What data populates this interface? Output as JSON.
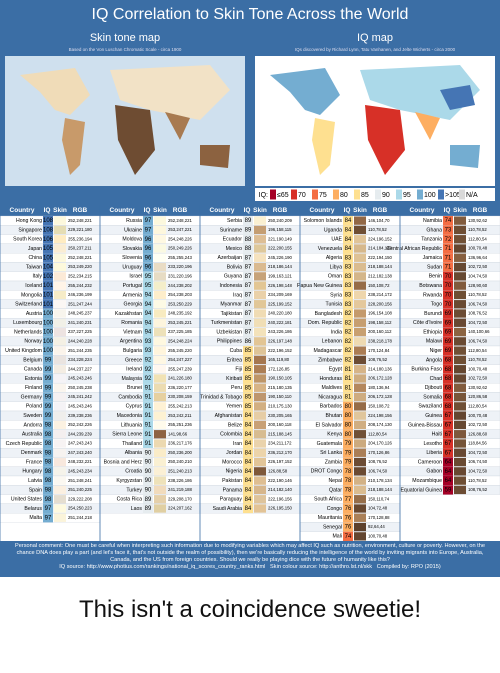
{
  "header": {
    "title": "IQ Correlation to Skin Tone Across the World",
    "left_title": "Skin tone map",
    "left_subtitle": "Based on the Von Luschan Chromatic Scale - circa 1900",
    "right_title": "IQ map",
    "right_subtitle": "IQs discovered by Richard Lynn, Tatu Vanhanen, and Jelte Wicherts - circa 2000"
  },
  "legend": {
    "label": "IQ:",
    "items": [
      {
        "value": 65,
        "label": "≤65",
        "color": "#a50026"
      },
      {
        "value": 70,
        "label": "70",
        "color": "#d73027"
      },
      {
        "value": 75,
        "label": "75",
        "color": "#f46d43"
      },
      {
        "value": 80,
        "label": "80",
        "color": "#fdae61"
      },
      {
        "value": 85,
        "label": "85",
        "color": "#fee090"
      },
      {
        "value": 90,
        "label": "90",
        "color": "#e6ecef"
      },
      {
        "value": 95,
        "label": "95",
        "color": "#abd9e9"
      },
      {
        "value": 100,
        "label": "100",
        "color": "#74add1"
      },
      {
        "value": 105,
        "label": ">105",
        "color": "#4575b4"
      }
    ],
    "na": {
      "label": "N/A",
      "color": "#d9d9d9"
    }
  },
  "table": {
    "headers": [
      "Country",
      "IQ",
      "Skin",
      "RGB"
    ],
    "columns": [
      {
        "rows": [
          [
            "Hong Kong",
            108,
            "252,248,221"
          ],
          [
            "Singapore",
            108,
            "229,221,180"
          ],
          [
            "South Korea",
            106,
            "255,236,194"
          ],
          [
            "Japan",
            105,
            "250,237,211"
          ],
          [
            "China",
            105,
            "252,248,221"
          ],
          [
            "Taiwan",
            104,
            "253,249,220"
          ],
          [
            "Italy",
            102,
            "252,234,215"
          ],
          [
            "Iceland",
            101,
            "255,244,232"
          ],
          [
            "Mongolia",
            101,
            "246,236,199"
          ],
          [
            "Switzerland",
            101,
            "251,247,244"
          ],
          [
            "Austria",
            100,
            "248,245,237"
          ],
          [
            "Luxembourg",
            100,
            "241,240,231"
          ],
          [
            "Netherlands",
            100,
            "237,227,225"
          ],
          [
            "Norway",
            100,
            "244,240,228"
          ],
          [
            "United Kingdom",
            100,
            "251,244,235"
          ],
          [
            "Belgium",
            99,
            "234,228,224"
          ],
          [
            "Canada",
            99,
            "244,237,227"
          ],
          [
            "Estonia",
            99,
            "245,243,246"
          ],
          [
            "Finland",
            99,
            "250,245,238"
          ],
          [
            "Germany",
            99,
            "245,241,242"
          ],
          [
            "Poland",
            99,
            "245,243,246"
          ],
          [
            "Sweden",
            99,
            "239,238,236"
          ],
          [
            "Andorra",
            98,
            "252,242,226"
          ],
          [
            "Australia",
            98,
            "244,239,239"
          ],
          [
            "Czech Republic",
            98,
            "247,243,243"
          ],
          [
            "Denmark",
            98,
            "247,243,240"
          ],
          [
            "France",
            98,
            "248,232,221"
          ],
          [
            "Hungary",
            98,
            "245,243,234"
          ],
          [
            "Latvia",
            98,
            "251,248,241"
          ],
          [
            "Spain",
            98,
            "251,240,225"
          ],
          [
            "United States",
            98,
            "229,222,208"
          ],
          [
            "Belarus",
            97,
            "254,250,223"
          ],
          [
            "Malta",
            97,
            "251,244,218"
          ]
        ]
      },
      {
        "rows": [
          [
            "Russia",
            97,
            "252,248,221"
          ],
          [
            "Ukraine",
            97,
            "253,247,221"
          ],
          [
            "Moldova",
            96,
            "254,248,226"
          ],
          [
            "Slovakia",
            96,
            "250,249,226"
          ],
          [
            "Slovenia",
            96,
            "255,255,243"
          ],
          [
            "Uruguay",
            96,
            "233,220,196"
          ],
          [
            "Israel",
            95,
            "231,220,196"
          ],
          [
            "Portugal",
            95,
            "244,238,202"
          ],
          [
            "Armenia",
            94,
            "254,238,203"
          ],
          [
            "Georgia",
            94,
            "253,250,229"
          ],
          [
            "Kazakhstan",
            94,
            "248,235,192"
          ],
          [
            "Romania",
            94,
            "253,245,221"
          ],
          [
            "Vietnam",
            94,
            "237,225,185"
          ],
          [
            "Argentina",
            93,
            "254,248,224"
          ],
          [
            "Bulgaria",
            93,
            "255,245,220"
          ],
          [
            "Greece",
            92,
            "254,247,227"
          ],
          [
            "Ireland",
            92,
            "255,247,239"
          ],
          [
            "Malaysia",
            92,
            "241,226,180"
          ],
          [
            "Brunei",
            91,
            "236,220,177"
          ],
          [
            "Cambodia",
            91,
            "230,208,159"
          ],
          [
            "Cyprus",
            91,
            "255,242,213"
          ],
          [
            "Macedonia",
            91,
            "253,242,211"
          ],
          [
            "Lithuania",
            91,
            "255,251,236"
          ],
          [
            "Sierra Leone",
            91,
            "141,98,66"
          ],
          [
            "Thailand",
            91,
            "236,217,176"
          ],
          [
            "Albania",
            90,
            "250,236,200"
          ],
          [
            "Bosnia and Herz",
            90,
            "250,240,210"
          ],
          [
            "Croatia",
            90,
            "251,240,213"
          ],
          [
            "Kyrgyzstan",
            90,
            "238,226,186"
          ],
          [
            "Turkey",
            90,
            "241,219,188"
          ],
          [
            "Costa Rica",
            89,
            "229,208,170"
          ],
          [
            "Laos",
            89,
            "224,207,162"
          ]
        ]
      },
      {
        "rows": [
          [
            "Serbia",
            89,
            "250,240,209"
          ],
          [
            "Suriname",
            89,
            "196,158,115"
          ],
          [
            "Ecuador",
            88,
            "221,190,149"
          ],
          [
            "Mexico",
            88,
            "222,200,155"
          ],
          [
            "Azerbaijan",
            87,
            "245,226,190"
          ],
          [
            "Bolivia",
            87,
            "218,186,144"
          ],
          [
            "Guyana",
            87,
            "199,163,121"
          ],
          [
            "Indonesia",
            87,
            "226,198,148"
          ],
          [
            "Iraq",
            87,
            "234,209,169"
          ],
          [
            "Myanmar",
            87,
            "225,199,152"
          ],
          [
            "Tajikistan",
            87,
            "240,220,180"
          ],
          [
            "Turkmenistan",
            87,
            "240,222,181"
          ],
          [
            "Uzbekistan",
            87,
            "243,226,186"
          ],
          [
            "Philippines",
            86,
            "226,197,148"
          ],
          [
            "Cuba",
            85,
            "222,196,152"
          ],
          [
            "Eritrea",
            85,
            "165,119,80"
          ],
          [
            "Fiji",
            85,
            "172,126,85"
          ],
          [
            "Kiribati",
            85,
            "190,150,105"
          ],
          [
            "Peru",
            85,
            "215,180,135"
          ],
          [
            "Trinidad & Tobago",
            85,
            "190,150,110"
          ],
          [
            "Yemen",
            85,
            "210,175,130"
          ],
          [
            "Afghanistan",
            84,
            "230,205,165"
          ],
          [
            "Belize",
            84,
            "200,160,118"
          ],
          [
            "Colombia",
            84,
            "215,188,145"
          ],
          [
            "Iran",
            84,
            "234,211,172"
          ],
          [
            "Jordan",
            84,
            "236,212,170"
          ],
          [
            "Morocco",
            84,
            "226,197,152"
          ],
          [
            "Nigeria",
            84,
            "126,88,58"
          ],
          [
            "Pakistan",
            84,
            "222,190,146"
          ],
          [
            "Panama",
            84,
            "214,182,140"
          ],
          [
            "Paraguay",
            84,
            "222,196,156"
          ],
          [
            "Saudi Arabia",
            84,
            "226,195,150"
          ]
        ]
      },
      {
        "rows": [
          [
            "Solomon Islands",
            84,
            "146,104,70"
          ],
          [
            "Uganda",
            84,
            "110,78,52"
          ],
          [
            "UAE",
            84,
            "224,196,152"
          ],
          [
            "Venezuela",
            84,
            "214,184,140"
          ],
          [
            "Algeria",
            83,
            "222,194,150"
          ],
          [
            "Libya",
            83,
            "218,188,144"
          ],
          [
            "Oman",
            83,
            "212,182,138"
          ],
          [
            "Papua New Guinea",
            83,
            "150,108,72"
          ],
          [
            "Syria",
            83,
            "238,214,172"
          ],
          [
            "Tunisia",
            83,
            "228,200,156"
          ],
          [
            "Bangladesh",
            82,
            "196,154,108"
          ],
          [
            "Dom. Republic",
            82,
            "198,158,112"
          ],
          [
            "India",
            82,
            "200,160,112"
          ],
          [
            "Lebanon",
            82,
            "238,218,178"
          ],
          [
            "Madagascar",
            82,
            "170,124,84"
          ],
          [
            "Zimbabwe",
            82,
            "108,76,52"
          ],
          [
            "Egypt",
            81,
            "214,180,136"
          ],
          [
            "Honduras",
            81,
            "206,172,128"
          ],
          [
            "Maldives",
            81,
            "180,136,94"
          ],
          [
            "Nicaragua",
            81,
            "206,172,128"
          ],
          [
            "Barbados",
            80,
            "150,108,72"
          ],
          [
            "Bhutan",
            80,
            "224,198,156"
          ],
          [
            "El Salvador",
            80,
            "208,174,130"
          ],
          [
            "Kenya",
            80,
            "112,80,54"
          ],
          [
            "Guatemala",
            79,
            "204,170,126"
          ],
          [
            "Sri Lanka",
            79,
            "170,126,86"
          ],
          [
            "Zambia",
            79,
            "108,76,52"
          ],
          [
            "DROT Congo",
            78,
            "106,74,50"
          ],
          [
            "Nepal",
            78,
            "210,178,134"
          ],
          [
            "Qatar",
            78,
            "218,188,144"
          ],
          [
            "South Africa",
            77,
            "150,110,74"
          ],
          [
            "Congo",
            76,
            "104,72,48"
          ],
          [
            "Mauritania",
            76,
            "170,128,88"
          ],
          [
            "Senegal",
            76,
            "92,64,44"
          ],
          [
            "Mali",
            74,
            "100,70,48"
          ]
        ]
      },
      {
        "rows": [
          [
            "Namibia",
            74,
            "130,92,62"
          ],
          [
            "Ghana",
            73,
            "110,78,52"
          ],
          [
            "Tanzania",
            72,
            "112,80,54"
          ],
          [
            "Central African Republic",
            71,
            "100,70,48"
          ],
          [
            "Jamaica",
            71,
            "136,96,64"
          ],
          [
            "Sudan",
            71,
            "102,72,50"
          ],
          [
            "Benin",
            70,
            "104,74,50"
          ],
          [
            "Botswana",
            70,
            "128,90,60"
          ],
          [
            "Rwanda",
            70,
            "110,78,52"
          ],
          [
            "Togo",
            70,
            "106,74,50"
          ],
          [
            "Burundi",
            69,
            "108,76,52"
          ],
          [
            "Côte d'Ivoire",
            69,
            "104,72,50"
          ],
          [
            "Ethiopia",
            69,
            "140,100,66"
          ],
          [
            "Malawi",
            69,
            "106,74,50"
          ],
          [
            "Niger",
            69,
            "112,80,54"
          ],
          [
            "Angola",
            68,
            "110,78,52"
          ],
          [
            "Burkina Faso",
            68,
            "100,70,48"
          ],
          [
            "Chad",
            68,
            "102,72,50"
          ],
          [
            "Djibouti",
            68,
            "130,92,62"
          ],
          [
            "Somalia",
            68,
            "120,86,58"
          ],
          [
            "Swaziland",
            68,
            "112,80,54"
          ],
          [
            "Guinea",
            67,
            "100,70,48"
          ],
          [
            "Guinea-Bissau",
            67,
            "102,72,50"
          ],
          [
            "Haiti",
            67,
            "126,88,60"
          ],
          [
            "Lesotho",
            67,
            "118,84,56"
          ],
          [
            "Liberia",
            67,
            "104,72,50"
          ],
          [
            "Cameroon",
            64,
            "106,74,50"
          ],
          [
            "Gabon",
            64,
            "104,72,50"
          ],
          [
            "Mozambique",
            64,
            "110,78,52"
          ],
          [
            "Equatorial Guinea",
            59,
            "108,76,52"
          ]
        ]
      }
    ]
  },
  "footer": {
    "comment": "Personal comment: One must be careful when interpreting such information due to modifying variables which may affect IQ such as nutrition, environment, culture or poverty. However, on the chance DNA does play a part (and let's face it, that's not outside the realm of possibility), then we're basically reducing the intelligence of the world by inviting migrants into Europe, Australia, Canada, and the US from foreign countries. Should we really be playing dice with the future of humanity like this?",
    "iq_source": "IQ source: http://www.photius.com/rankings/national_iq_scores_country_ranks.html",
    "skin_source": "Skin colour source: http://anthro.lst.nl/skk",
    "compiled": "Compiled by: RPO (2015)"
  },
  "caption": "This isn't a coincidence sweetie!"
}
